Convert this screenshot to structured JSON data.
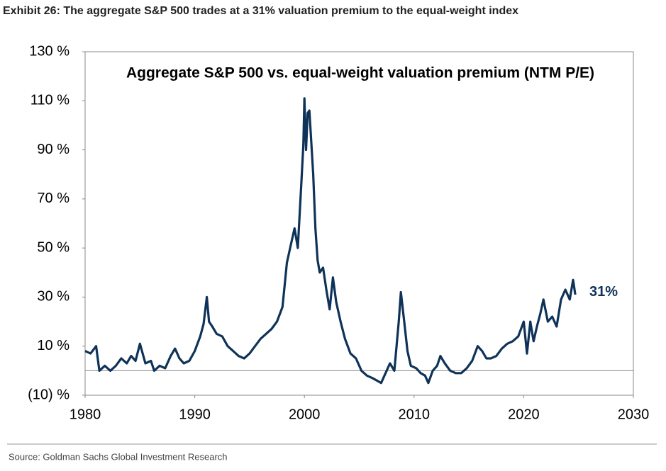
{
  "chart_data": {
    "type": "line",
    "exhibit_title": "Exhibit 26: The aggregate S&P 500 trades at a 31% valuation premium to the equal-weight index",
    "title": "Aggregate S&P 500 vs. equal-weight valuation premium (NTM P/E)",
    "source": "Source: Goldman Sachs Global Investment Research",
    "annotation": "31%",
    "xlim": [
      1980,
      2030
    ],
    "xticks": [
      1980,
      1990,
      2000,
      2010,
      2020,
      2030
    ],
    "ylim": [
      -10,
      130
    ],
    "yticks": [
      {
        "value": -10,
        "label": "(10) %"
      },
      {
        "value": 10,
        "label": "10 %"
      },
      {
        "value": 30,
        "label": "30 %"
      },
      {
        "value": 50,
        "label": "50 %"
      },
      {
        "value": 70,
        "label": "70 %"
      },
      {
        "value": 90,
        "label": "90 %"
      },
      {
        "value": 110,
        "label": "110 %"
      },
      {
        "value": 130,
        "label": "130 %"
      }
    ],
    "series": [
      {
        "color": "#0f3358",
        "x": [
          1980,
          1980.5,
          1981,
          1981.3,
          1981.8,
          1982.3,
          1982.8,
          1983.3,
          1983.8,
          1984.2,
          1984.6,
          1985,
          1985.5,
          1986,
          1986.3,
          1986.8,
          1987.3,
          1987.8,
          1988.2,
          1988.6,
          1989,
          1989.5,
          1990,
          1990.5,
          1990.8,
          1991.1,
          1991.3,
          1991.6,
          1992,
          1992.5,
          1993,
          1993.5,
          1994,
          1994.5,
          1995,
          1995.5,
          1996,
          1996.5,
          1997,
          1997.5,
          1998,
          1998.4,
          1998.8,
          1999.1,
          1999.4,
          1999.7,
          1999.9,
          2000.0,
          2000.15,
          2000.3,
          2000.45,
          2000.6,
          2000.8,
          2001,
          2001.2,
          2001.4,
          2001.7,
          2002,
          2002.3,
          2002.6,
          2002.9,
          2003.3,
          2003.7,
          2004.2,
          2004.7,
          2005.2,
          2005.7,
          2006.2,
          2006.6,
          2007,
          2007.4,
          2007.8,
          2008.2,
          2008.6,
          2008.8,
          2009.1,
          2009.4,
          2009.7,
          2010.2,
          2010.6,
          2011,
          2011.3,
          2011.7,
          2012.1,
          2012.4,
          2012.8,
          2013.3,
          2013.8,
          2014.3,
          2014.8,
          2015.3,
          2015.8,
          2016.2,
          2016.6,
          2017,
          2017.5,
          2018,
          2018.5,
          2019,
          2019.5,
          2020,
          2020.3,
          2020.6,
          2020.9,
          2021.2,
          2021.5,
          2021.8,
          2022.2,
          2022.6,
          2023,
          2023.4,
          2023.8,
          2024.2,
          2024.5,
          2024.7
        ],
        "values": [
          8,
          7,
          10,
          0,
          2,
          0,
          2,
          5,
          3,
          6,
          4,
          11,
          3,
          4,
          0,
          2,
          1,
          6,
          9,
          5,
          3,
          4,
          8,
          14,
          19,
          30,
          20,
          18,
          15,
          14,
          10,
          8,
          6,
          5,
          7,
          10,
          13,
          15,
          17,
          20,
          26,
          44,
          52,
          58,
          50,
          75,
          92,
          111,
          90,
          105,
          106,
          95,
          80,
          58,
          45,
          40,
          42,
          33,
          25,
          38,
          28,
          20,
          13,
          7,
          5,
          0,
          -2,
          -3,
          -4,
          -5,
          -1,
          3,
          0,
          20,
          32,
          20,
          8,
          2,
          1,
          -1,
          -2,
          -5,
          0,
          2,
          6,
          3,
          0,
          -1,
          -1,
          1,
          4,
          10,
          8,
          5,
          5,
          6,
          9,
          11,
          12,
          14,
          20,
          7,
          20,
          12,
          18,
          23,
          29,
          20,
          22,
          18,
          29,
          33,
          29,
          37,
          31
        ]
      }
    ]
  }
}
